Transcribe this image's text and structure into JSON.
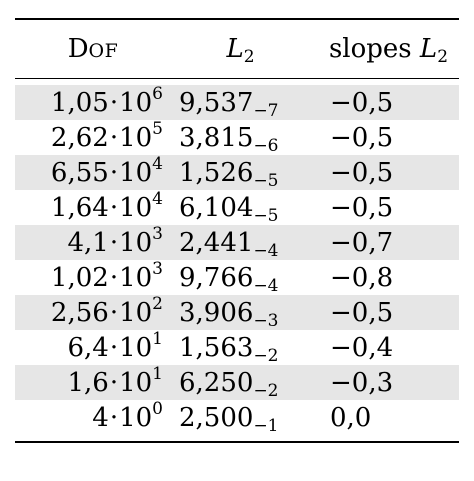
{
  "table": {
    "headers": {
      "dof_first": "D",
      "dof_rest": "OF",
      "l2_letter": "L",
      "l2_sub": "2",
      "slopes_text": "slopes",
      "slopes_letter": "L",
      "slopes_sub": "2"
    },
    "rows": [
      {
        "dof_mantissa": "1,05",
        "dof_exp": "6",
        "l2_mantissa": "9,537",
        "l2_exp": "−7",
        "slope": "−0,5",
        "shaded": true
      },
      {
        "dof_mantissa": "2,62",
        "dof_exp": "5",
        "l2_mantissa": "3,815",
        "l2_exp": "−6",
        "slope": "−0,5",
        "shaded": false
      },
      {
        "dof_mantissa": "6,55",
        "dof_exp": "4",
        "l2_mantissa": "1,526",
        "l2_exp": "−5",
        "slope": "−0,5",
        "shaded": true
      },
      {
        "dof_mantissa": "1,64",
        "dof_exp": "4",
        "l2_mantissa": "6,104",
        "l2_exp": "−5",
        "slope": "−0,5",
        "shaded": false
      },
      {
        "dof_mantissa": "4,1",
        "dof_exp": "3",
        "l2_mantissa": "2,441",
        "l2_exp": "−4",
        "slope": "−0,7",
        "shaded": true
      },
      {
        "dof_mantissa": "1,02",
        "dof_exp": "3",
        "l2_mantissa": "9,766",
        "l2_exp": "−4",
        "slope": "−0,8",
        "shaded": false
      },
      {
        "dof_mantissa": "2,56",
        "dof_exp": "2",
        "l2_mantissa": "3,906",
        "l2_exp": "−3",
        "slope": "−0,5",
        "shaded": true
      },
      {
        "dof_mantissa": "6,4",
        "dof_exp": "1",
        "l2_mantissa": "1,563",
        "l2_exp": "−2",
        "slope": "−0,4",
        "shaded": false
      },
      {
        "dof_mantissa": "1,6",
        "dof_exp": "1",
        "l2_mantissa": "6,250",
        "l2_exp": "−2",
        "slope": "−0,3",
        "shaded": true
      },
      {
        "dof_mantissa": "4",
        "dof_exp": "0",
        "l2_mantissa": "2,500",
        "l2_exp": "−1",
        "slope": "0,0",
        "shaded": false
      }
    ],
    "base": "10",
    "times_symbol": "·",
    "shade_color": "#e6e6e6"
  }
}
